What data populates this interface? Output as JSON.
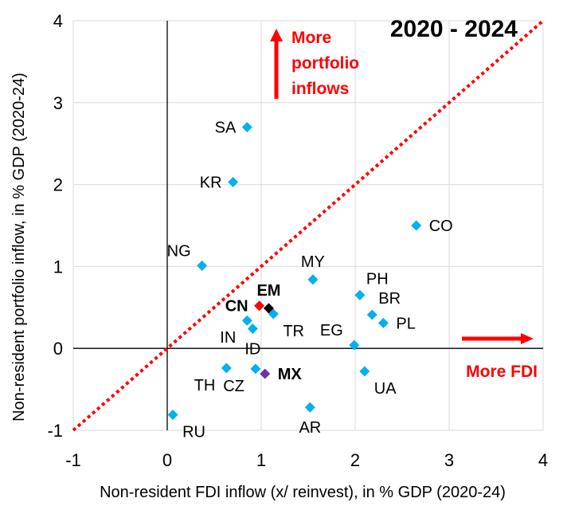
{
  "chart_data": {
    "type": "scatter",
    "title": "2020 - 2024",
    "xlabel": "Non-resident FDI inflow (x/ reinvest), in % GDP (2020-24)",
    "ylabel": "Non-resident portfolio inflow, in % GDP (2020-24)",
    "xlim": [
      -1,
      4
    ],
    "ylim": [
      -1,
      4
    ],
    "xticks": [
      -1,
      0,
      1,
      2,
      3,
      4
    ],
    "yticks": [
      -1,
      0,
      1,
      2,
      3,
      4
    ],
    "grid": true,
    "reference_line": {
      "label": "y = x",
      "color": "#ff0000",
      "style": "dotted"
    },
    "annotations": {
      "portfolio": "More portfolio inflows",
      "portfolio_lines": [
        "More",
        "portfolio",
        "inflows"
      ],
      "fdi": "More FDI"
    },
    "colors": {
      "default": "#00b0f0",
      "EM": "#000000",
      "CN": "#ff0000",
      "MX": "#7030a0",
      "annotation": "#ff0000"
    },
    "points": [
      {
        "label": "SA",
        "x": 0.85,
        "y": 2.7,
        "anchor": "left"
      },
      {
        "label": "KR",
        "x": 0.7,
        "y": 2.03,
        "anchor": "left"
      },
      {
        "label": "NG",
        "x": 0.37,
        "y": 1.01,
        "anchor": "upleft"
      },
      {
        "label": "CO",
        "x": 2.65,
        "y": 1.5,
        "anchor": "right"
      },
      {
        "label": "MY",
        "x": 1.55,
        "y": 0.84,
        "anchor": "up"
      },
      {
        "label": "PH",
        "x": 2.05,
        "y": 0.65,
        "anchor": "upright"
      },
      {
        "label": "BR",
        "x": 2.18,
        "y": 0.41,
        "anchor": "upright"
      },
      {
        "label": "PL",
        "x": 2.3,
        "y": 0.31,
        "anchor": "right"
      },
      {
        "label": "EG",
        "x": 1.99,
        "y": 0.04,
        "anchor": "upleft"
      },
      {
        "label": "TR",
        "x": 1.13,
        "y": 0.42,
        "anchor": "downright"
      },
      {
        "label": "IN",
        "x": 0.85,
        "y": 0.34,
        "anchor": "downleft"
      },
      {
        "label": "ID",
        "x": 0.91,
        "y": 0.24,
        "anchor": "down"
      },
      {
        "label": "TH",
        "x": 0.63,
        "y": -0.24,
        "anchor": "downleft"
      },
      {
        "label": "CZ",
        "x": 0.94,
        "y": -0.25,
        "anchor": "downleft"
      },
      {
        "label": "UA",
        "x": 2.1,
        "y": -0.28,
        "anchor": "downright"
      },
      {
        "label": "AR",
        "x": 1.52,
        "y": -0.72,
        "anchor": "down"
      },
      {
        "label": "RU",
        "x": 0.06,
        "y": -0.81,
        "anchor": "downright"
      },
      {
        "label": "EM",
        "x": 1.08,
        "y": 0.49,
        "anchor": "up",
        "highlight": "EM"
      },
      {
        "label": "CN",
        "x": 0.98,
        "y": 0.52,
        "anchor": "left",
        "highlight": "CN"
      },
      {
        "label": "MX",
        "x": 1.04,
        "y": -0.31,
        "anchor": "right",
        "highlight": "MX"
      }
    ]
  }
}
